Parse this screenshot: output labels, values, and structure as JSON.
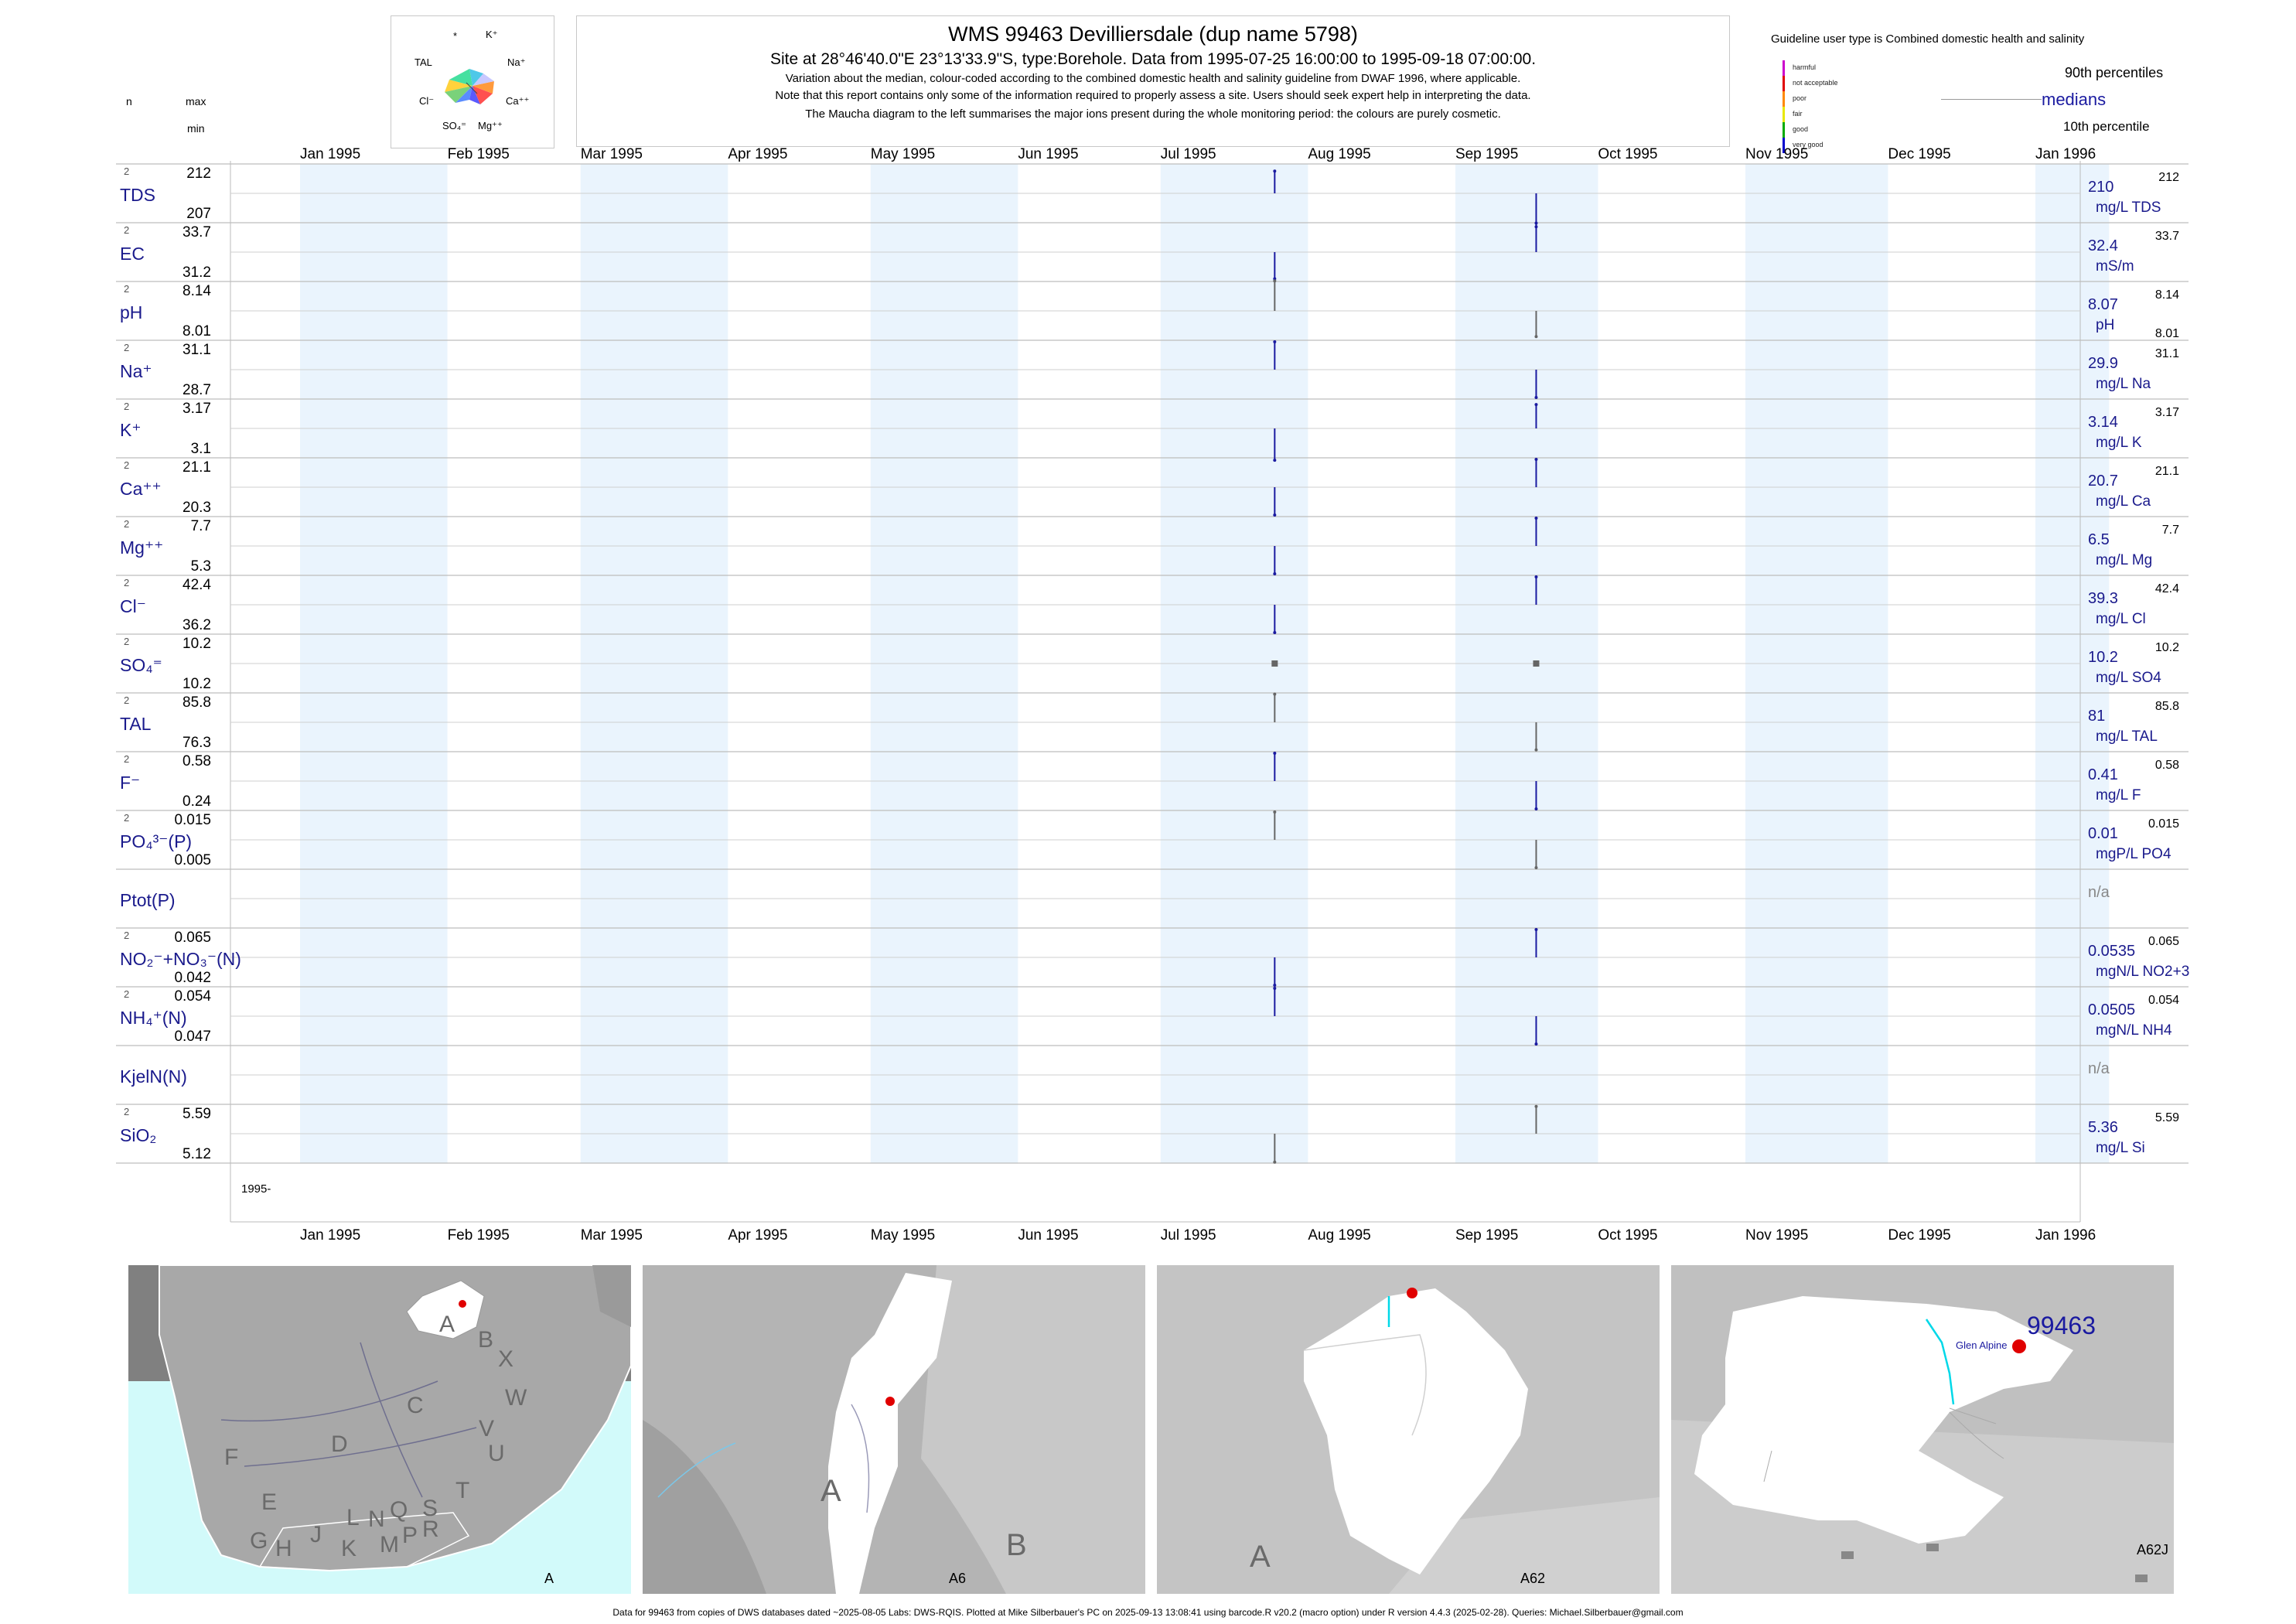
{
  "header": {
    "title": "WMS 99463  Devilliersdale (dup name 5798)",
    "subtitle": "Site at 28°46'40.0\"E 23°13'33.9\"S, type:Borehole.  Data from 1995-07-25 16:00:00 to 1995-09-18 07:00:00.",
    "note1": "Variation about the median,  colour-coded according to the combined domestic health and salinity guideline from DWAF 1996, where applicable.",
    "note2": "Note that this report contains only some of the information required to properly assess a site. Users should seek expert help in interpreting the data.",
    "note3": "The Maucha diagram to the left summarises the major ions present during the whole monitoring period: the colours are purely cosmetic."
  },
  "maucha": {
    "labels": [
      "*",
      "K⁺",
      "Na⁺",
      "Ca⁺⁺",
      "Mg⁺⁺",
      "SO₄⁼",
      "Cl⁻",
      "TAL"
    ]
  },
  "left_header": {
    "n": "n",
    "max": "max",
    "min": "min"
  },
  "guideline": {
    "title": "Guideline user type is Combined domestic health and salinity",
    "levels": [
      {
        "label": "harmful",
        "color": "#cc00cc"
      },
      {
        "label": "not acceptable",
        "color": "#e00000"
      },
      {
        "label": "poor",
        "color": "#ff8800"
      },
      {
        "label": "fair",
        "color": "#e8e800"
      },
      {
        "label": "good",
        "color": "#00aa00"
      },
      {
        "label": "very good",
        "color": "#0000cc"
      }
    ],
    "p90": "90th percentiles",
    "medians": "medians",
    "p10": "10th percentile"
  },
  "months": [
    "Jan 1995",
    "Feb 1995",
    "Mar 1995",
    "Apr 1995",
    "May 1995",
    "Jun 1995",
    "Jul 1995",
    "Aug 1995",
    "Sep 1995",
    "Oct 1995",
    "Nov 1995",
    "Dec 1995",
    "Jan 1996"
  ],
  "year_label": "1995-",
  "chart_data": {
    "type": "line",
    "x_range": [
      "1995-01-01",
      "1996-01-01"
    ],
    "sample_dates": [
      "1995-07-25",
      "1995-09-18"
    ],
    "variables": [
      {
        "name": "TDS",
        "n": "2",
        "max": "212",
        "min": "207",
        "median": "210",
        "unit": "mg/L TDS",
        "p90": "212",
        "p10": "",
        "values": [
          212,
          207
        ]
      },
      {
        "name": "EC",
        "n": "2",
        "max": "33.7",
        "min": "31.2",
        "median": "32.4",
        "unit": "mS/m",
        "p90": "33.7",
        "p10": "",
        "values": [
          31.2,
          33.7
        ]
      },
      {
        "name": "pH",
        "n": "2",
        "max": "8.14",
        "min": "8.01",
        "median": "8.07",
        "unit": "pH",
        "p90": "8.14",
        "p10": "8.01",
        "values": [
          8.14,
          8.01
        ]
      },
      {
        "name": "Na⁺",
        "n": "2",
        "max": "31.1",
        "min": "28.7",
        "median": "29.9",
        "unit": "mg/L Na",
        "p90": "31.1",
        "p10": "",
        "values": [
          31.1,
          28.7
        ]
      },
      {
        "name": "K⁺",
        "n": "2",
        "max": "3.17",
        "min": "3.1",
        "median": "3.14",
        "unit": "mg/L K",
        "p90": "3.17",
        "p10": "",
        "values": [
          3.1,
          3.17
        ]
      },
      {
        "name": "Ca⁺⁺",
        "n": "2",
        "max": "21.1",
        "min": "20.3",
        "median": "20.7",
        "unit": "mg/L Ca",
        "p90": "21.1",
        "p10": "",
        "values": [
          20.3,
          21.1
        ]
      },
      {
        "name": "Mg⁺⁺",
        "n": "2",
        "max": "7.7",
        "min": "5.3",
        "median": "6.5",
        "unit": "mg/L Mg",
        "p90": "7.7",
        "p10": "",
        "values": [
          5.3,
          7.7
        ]
      },
      {
        "name": "Cl⁻",
        "n": "2",
        "max": "42.4",
        "min": "36.2",
        "median": "39.3",
        "unit": "mg/L Cl",
        "p90": "42.4",
        "p10": "",
        "values": [
          36.2,
          42.4
        ]
      },
      {
        "name": "SO₄⁼",
        "n": "2",
        "max": "10.2",
        "min": "10.2",
        "median": "10.2",
        "unit": "mg/L SO4",
        "p90": "10.2",
        "p10": "",
        "values": [
          10.2,
          10.2
        ]
      },
      {
        "name": "TAL",
        "n": "2",
        "max": "85.8",
        "min": "76.3",
        "median": "81",
        "unit": "mg/L TAL",
        "p90": "85.8",
        "p10": "",
        "values": [
          85.8,
          76.3
        ]
      },
      {
        "name": "F⁻",
        "n": "2",
        "max": "0.58",
        "min": "0.24",
        "median": "0.41",
        "unit": "mg/L F",
        "p90": "0.58",
        "p10": "",
        "values": [
          0.58,
          0.24
        ]
      },
      {
        "name": "PO₄³⁻(P)",
        "n": "2",
        "max": "0.015",
        "min": "0.005",
        "median": "0.01",
        "unit": "mgP/L PO4",
        "p90": "0.015",
        "p10": "",
        "values": [
          0.015,
          0.005
        ]
      },
      {
        "name": "Ptot(P)",
        "n": "",
        "max": "",
        "min": "",
        "median": "n/a",
        "unit": "",
        "p90": "",
        "p10": "",
        "values": []
      },
      {
        "name": "NO₂⁻+NO₃⁻(N)",
        "n": "2",
        "max": "0.065",
        "min": "0.042",
        "median": "0.0535",
        "unit": "mgN/L NO2+3",
        "p90": "0.065",
        "p10": "",
        "values": [
          0.042,
          0.065
        ]
      },
      {
        "name": "NH₄⁺(N)",
        "n": "2",
        "max": "0.054",
        "min": "0.047",
        "median": "0.0505",
        "unit": "mgN/L NH4",
        "p90": "0.054",
        "p10": "",
        "values": [
          0.054,
          0.047
        ]
      },
      {
        "name": "KjelN(N)",
        "n": "",
        "max": "",
        "min": "",
        "median": "n/a",
        "unit": "",
        "p90": "",
        "p10": "",
        "values": []
      },
      {
        "name": "SiO₂",
        "n": "2",
        "max": "5.59",
        "min": "5.12",
        "median": "5.36",
        "unit": "mg/L Si",
        "p90": "5.59",
        "p10": "",
        "values": [
          5.12,
          5.59
        ]
      }
    ]
  },
  "maps": {
    "panel1": {
      "code": "A",
      "letters": [
        "A",
        "B",
        "X",
        "C",
        "W",
        "D",
        "V",
        "U",
        "F",
        "T",
        "E",
        "L",
        "N",
        "Q",
        "S",
        "G",
        "H",
        "J",
        "K",
        "M",
        "P",
        "R"
      ]
    },
    "panel2": {
      "code": "A6",
      "letters": [
        "A",
        "B"
      ]
    },
    "panel3": {
      "code": "A62",
      "letters": [
        "A"
      ]
    },
    "panel4": {
      "code": "A62J",
      "site_id": "99463",
      "place": "Glen Alpine"
    }
  },
  "footer": "Data for 99463 from copies of DWS databases dated ~2025-08-05 Labs: DWS-RQIS. Plotted at Mike Silberbauer's PC on 2025-09-13 13:08:41 using barcode.R v20.2 (macro option) under R version 4.4.3 (2025-02-28). Queries: Michael.Silberbauer@gmail.com"
}
